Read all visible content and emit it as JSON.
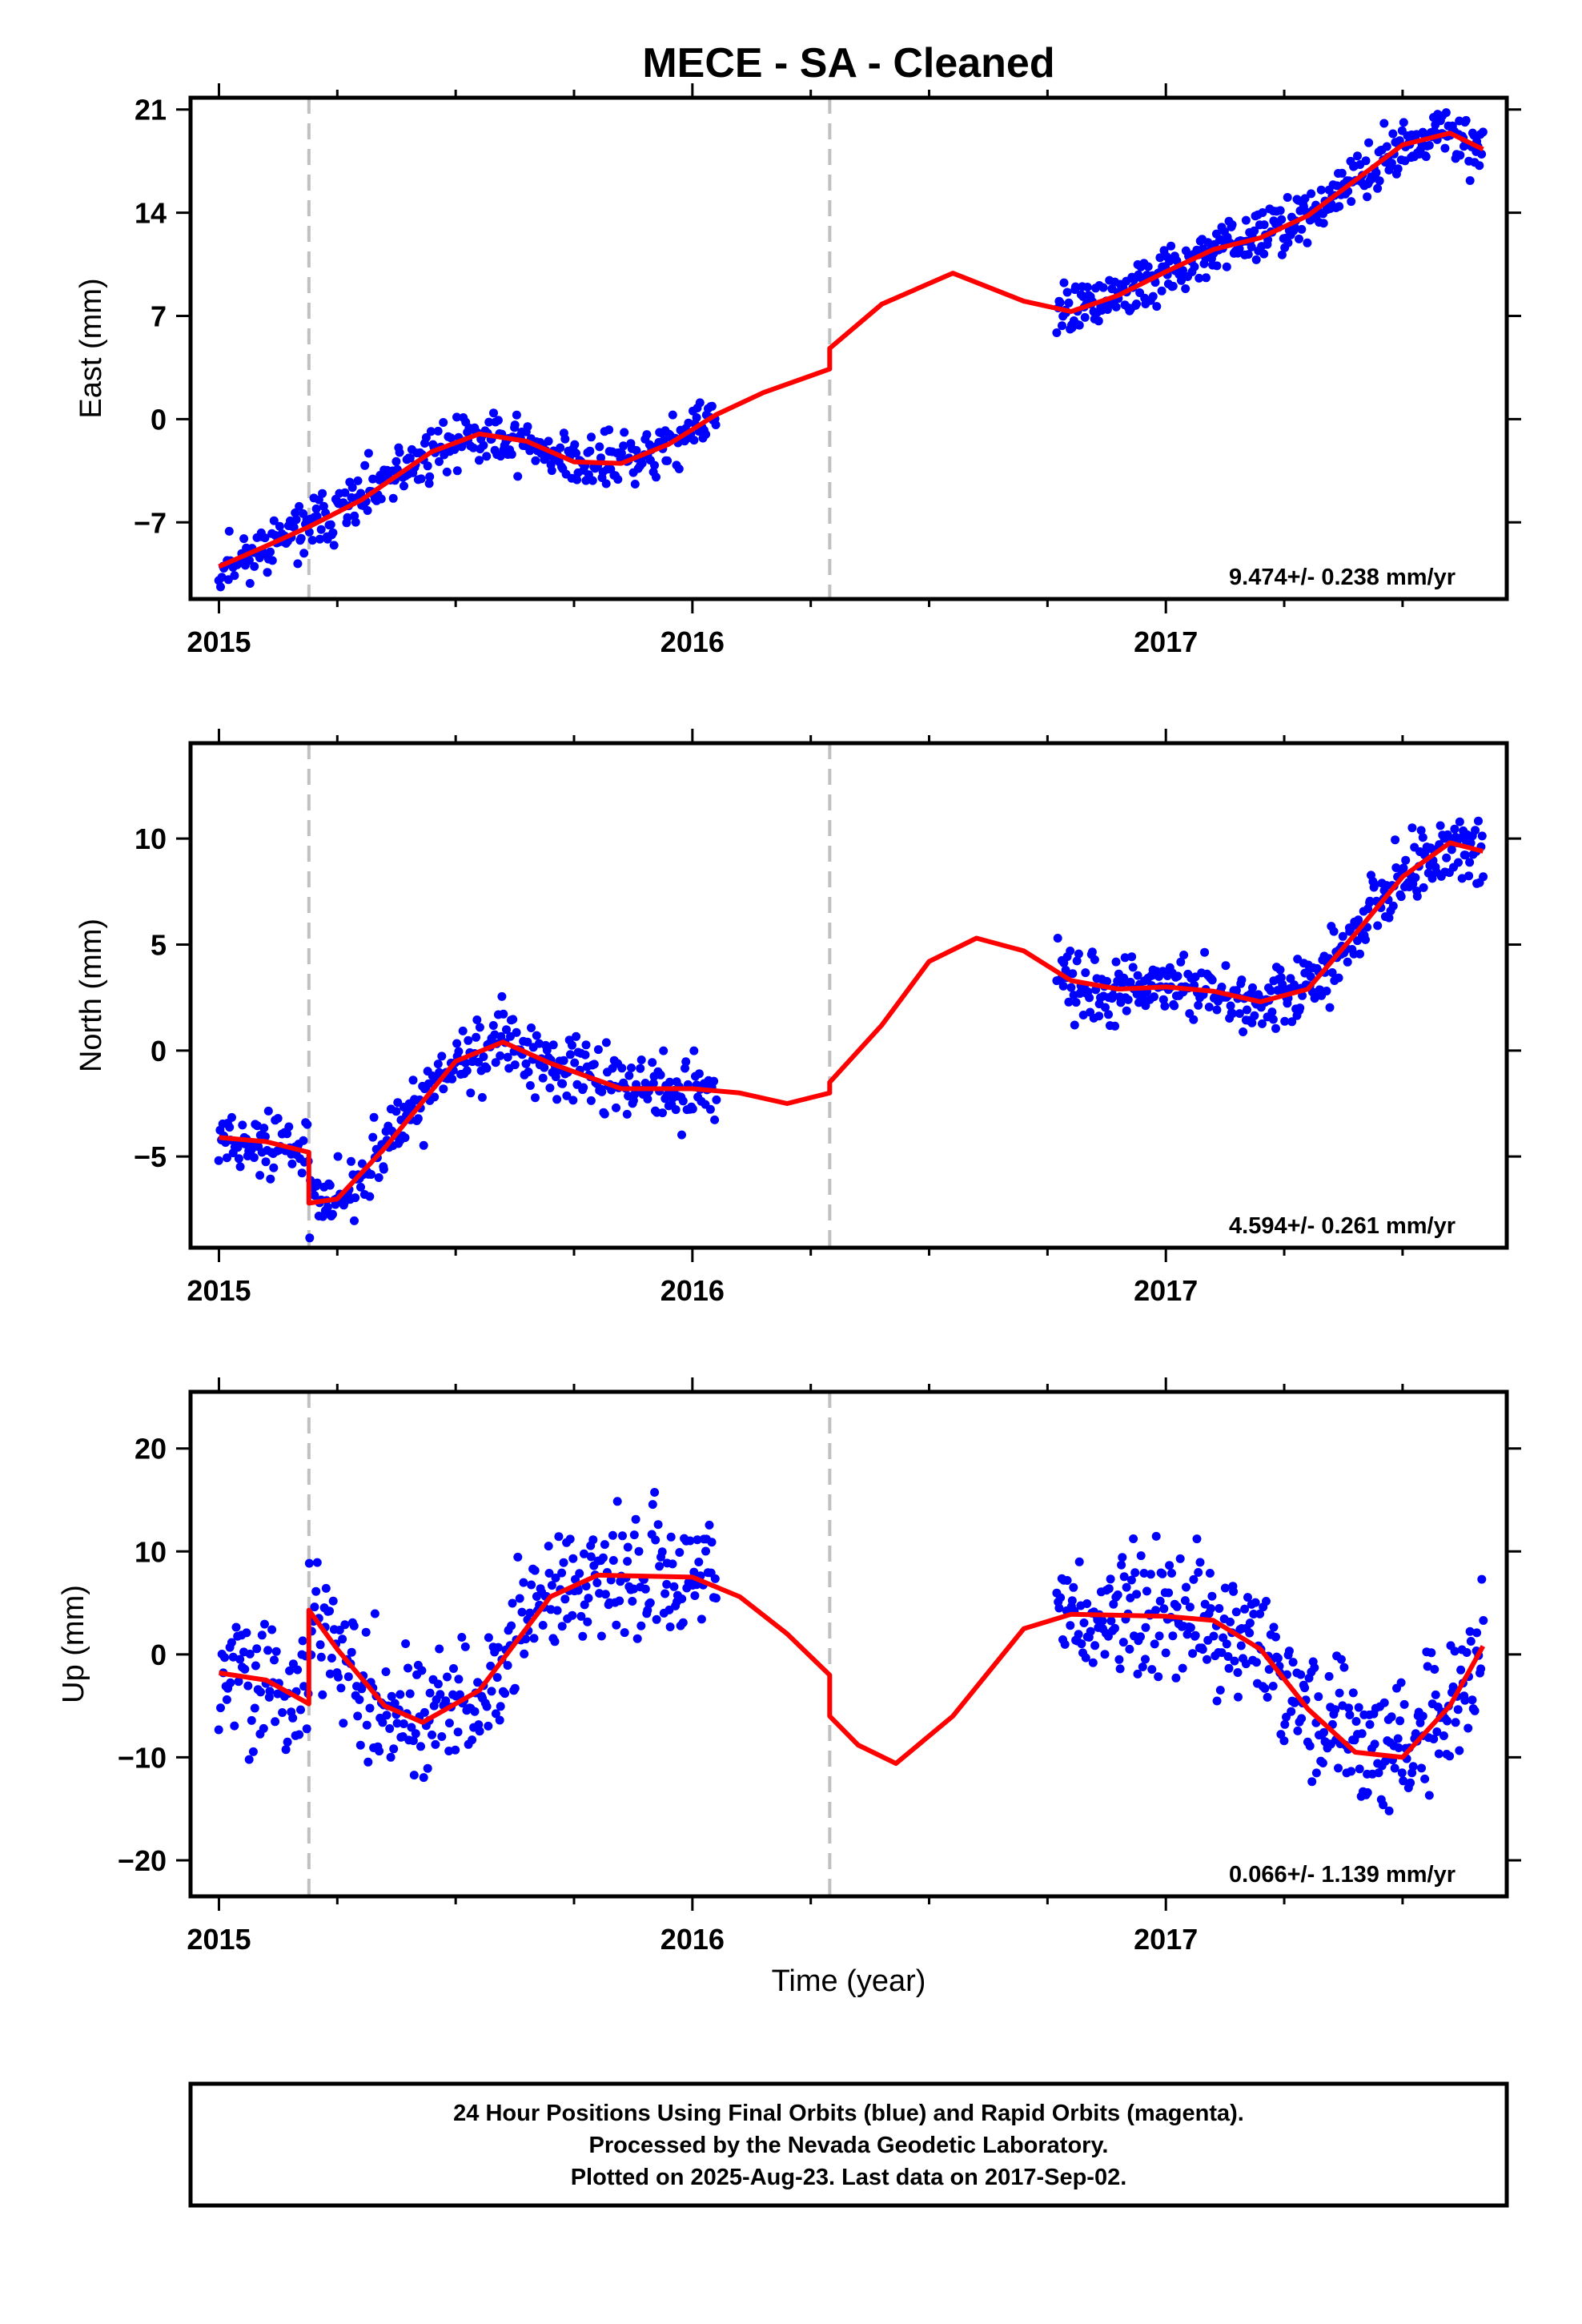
{
  "title": "MECE  - SA - Cleaned",
  "xlabel": "Time (year)",
  "footer": {
    "lines": [
      "24 Hour Positions Using Final Orbits (blue) and Rapid Orbits (magenta).",
      "Processed by the Nevada Geodetic Laboratory.",
      "Plotted on 2025-Aug-23. Last data on 2017-Sep-02."
    ]
  },
  "colors": {
    "points": "#0000ff",
    "model": "#ff0000",
    "offset_lines": "#c0c0c0",
    "frame": "#000000"
  },
  "offset_epochs": [
    2015.19,
    2016.29
  ],
  "chart_data": [
    {
      "type": "scatter",
      "ylabel": "East (mm)",
      "rate_text": "9.474+/- 0.238 mm/yr",
      "xlim": [
        2014.94,
        2017.72
      ],
      "ylim": [
        -12.2,
        21.8
      ],
      "xticks": [
        2015,
        2016,
        2017
      ],
      "xtick_labels": [
        "2015",
        "2016",
        "2017"
      ],
      "yticks": [
        -7,
        0,
        7,
        14,
        21
      ],
      "ytick_labels": [
        "−7",
        "0",
        "7",
        "14",
        "21"
      ],
      "model": {
        "x": [
          2015.0,
          2015.1,
          2015.19,
          2015.3,
          2015.45,
          2015.55,
          2015.65,
          2015.75,
          2015.85,
          2015.95,
          2016.05,
          2016.15,
          2016.29,
          2016.29,
          2016.4,
          2016.55,
          2016.7,
          2016.8,
          2016.9,
          2017.0,
          2017.1,
          2017.2,
          2017.3,
          2017.4,
          2017.5,
          2017.6,
          2017.67
        ],
        "y": [
          -10.0,
          -8.6,
          -7.3,
          -5.5,
          -2.2,
          -1.0,
          -1.5,
          -2.9,
          -3.0,
          -1.7,
          0.3,
          1.8,
          3.4,
          4.8,
          7.8,
          9.9,
          8.0,
          7.3,
          8.4,
          10.0,
          11.5,
          12.3,
          13.8,
          16.2,
          18.6,
          19.4,
          18.3
        ]
      },
      "scatter_segments": [
        {
          "x0": 2015.0,
          "x1": 2016.05,
          "n": 380,
          "noise": 1.3,
          "seed": 11
        },
        {
          "x0": 2016.77,
          "x1": 2017.67,
          "n": 360,
          "noise": 1.2,
          "seed": 12
        }
      ]
    },
    {
      "type": "scatter",
      "ylabel": "North (mm)",
      "rate_text": "4.594+/- 0.261 mm/yr",
      "xlim": [
        2014.94,
        2017.72
      ],
      "ylim": [
        -9.3,
        14.5
      ],
      "xticks": [
        2015,
        2016,
        2017
      ],
      "xtick_labels": [
        "2015",
        "2016",
        "2017"
      ],
      "yticks": [
        -5,
        0,
        5,
        10
      ],
      "ytick_labels": [
        "−5",
        "0",
        "5",
        "10"
      ],
      "model": {
        "x": [
          2015.0,
          2015.1,
          2015.19,
          2015.19,
          2015.25,
          2015.35,
          2015.5,
          2015.6,
          2015.7,
          2015.85,
          2016.0,
          2016.1,
          2016.2,
          2016.29,
          2016.29,
          2016.4,
          2016.5,
          2016.6,
          2016.7,
          2016.8,
          2016.9,
          2017.0,
          2017.1,
          2017.2,
          2017.3,
          2017.4,
          2017.5,
          2017.6,
          2017.67
        ],
        "y": [
          -4.1,
          -4.3,
          -4.8,
          -7.2,
          -7.0,
          -4.6,
          -0.5,
          0.4,
          -0.6,
          -1.8,
          -1.8,
          -2.0,
          -2.5,
          -2.0,
          -1.5,
          1.2,
          4.2,
          5.3,
          4.7,
          3.3,
          2.9,
          3.0,
          2.8,
          2.3,
          2.9,
          5.5,
          8.2,
          9.8,
          9.4
        ]
      },
      "scatter_segments": [
        {
          "x0": 2015.0,
          "x1": 2016.05,
          "n": 380,
          "noise": 1.1,
          "seed": 21
        },
        {
          "x0": 2016.77,
          "x1": 2017.67,
          "n": 360,
          "noise": 1.1,
          "seed": 22
        }
      ]
    },
    {
      "type": "scatter",
      "ylabel": "Up (mm)",
      "rate_text": "0.066+/- 1.139 mm/yr",
      "xlim": [
        2014.94,
        2017.72
      ],
      "ylim": [
        -23.5,
        25.5
      ],
      "xticks": [
        2015,
        2016,
        2017
      ],
      "xtick_labels": [
        "2015",
        "2016",
        "2017"
      ],
      "yticks": [
        -20,
        -10,
        0,
        10,
        20
      ],
      "ytick_labels": [
        "−20",
        "−10",
        "0",
        "10",
        "20"
      ],
      "model": {
        "x": [
          2015.0,
          2015.1,
          2015.19,
          2015.19,
          2015.25,
          2015.35,
          2015.43,
          2015.55,
          2015.7,
          2015.8,
          2016.0,
          2016.1,
          2016.2,
          2016.29,
          2016.29,
          2016.35,
          2016.43,
          2016.55,
          2016.7,
          2016.8,
          2017.0,
          2017.1,
          2017.2,
          2017.3,
          2017.4,
          2017.5,
          2017.6,
          2017.67
        ],
        "y": [
          -1.8,
          -2.5,
          -4.8,
          4.3,
          0.5,
          -5.0,
          -6.6,
          -3.5,
          5.6,
          7.7,
          7.5,
          5.6,
          2.0,
          -2.0,
          -6.0,
          -8.8,
          -10.6,
          -6.0,
          2.5,
          3.9,
          3.7,
          3.3,
          0.5,
          -5.3,
          -9.5,
          -10.0,
          -5.0,
          0.8
        ]
      },
      "scatter_segments": [
        {
          "x0": 2015.0,
          "x1": 2016.05,
          "n": 380,
          "noise": 4.4,
          "seed": 31
        },
        {
          "x0": 2016.77,
          "x1": 2017.67,
          "n": 360,
          "noise": 4.2,
          "seed": 32
        }
      ]
    }
  ]
}
